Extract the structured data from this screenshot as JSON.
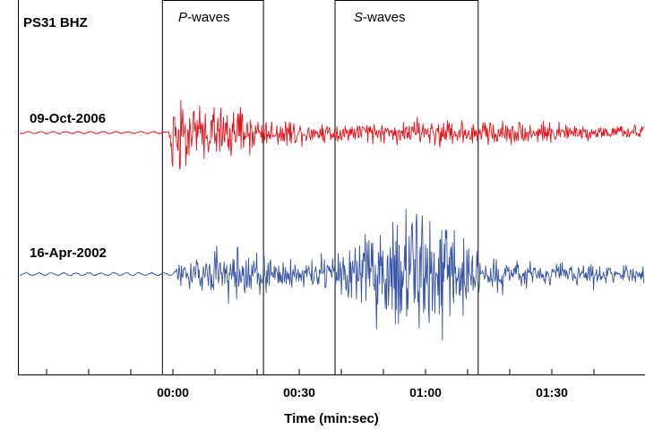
{
  "chart_data": {
    "type": "line",
    "title": "",
    "station_label": "PS31 BHZ",
    "xlabel": "Time (min:sec)",
    "ylabel": "",
    "x_unit": "seconds relative to 00:00",
    "xlim": [
      -35,
      107
    ],
    "x_ticks": [
      {
        "value": 0,
        "label": "00:00"
      },
      {
        "value": 30,
        "label": "00:30"
      },
      {
        "value": 60,
        "label": "01:00"
      },
      {
        "value": 90,
        "label": "01:30"
      }
    ],
    "minor_tick_step_seconds": 10,
    "windows": [
      {
        "label_italic": "P",
        "label_rest": "-waves",
        "start": -2.5,
        "end": 21.5
      },
      {
        "label_italic": "S",
        "label_rest": "-waves",
        "start": 38.5,
        "end": 72.5
      }
    ],
    "series": [
      {
        "name": "09-Oct-2006",
        "color": "#e8141b",
        "onset": 0,
        "envelope": [
          [
            -35,
            1.5
          ],
          [
            -1,
            1.5
          ],
          [
            0,
            44
          ],
          [
            1,
            42
          ],
          [
            3,
            34
          ],
          [
            6,
            28
          ],
          [
            10,
            26
          ],
          [
            14,
            24
          ],
          [
            18,
            20
          ],
          [
            22,
            14
          ],
          [
            30,
            11
          ],
          [
            40,
            10
          ],
          [
            50,
            10
          ],
          [
            55,
            11
          ],
          [
            60,
            13
          ],
          [
            65,
            14
          ],
          [
            70,
            12
          ],
          [
            75,
            13
          ],
          [
            80,
            11
          ],
          [
            90,
            9
          ],
          [
            100,
            7
          ],
          [
            107,
            6
          ]
        ]
      },
      {
        "name": "16-Apr-2002",
        "color": "#3755a5",
        "onset": 1,
        "envelope": [
          [
            -35,
            2
          ],
          [
            0,
            2
          ],
          [
            1,
            8
          ],
          [
            5,
            16
          ],
          [
            10,
            24
          ],
          [
            15,
            30
          ],
          [
            20,
            22
          ],
          [
            25,
            16
          ],
          [
            30,
            15
          ],
          [
            38,
            18
          ],
          [
            42,
            34
          ],
          [
            48,
            44
          ],
          [
            52,
            56
          ],
          [
            56,
            58
          ],
          [
            60,
            56
          ],
          [
            66,
            46
          ],
          [
            70,
            36
          ],
          [
            73,
            24
          ],
          [
            78,
            14
          ],
          [
            85,
            11
          ],
          [
            95,
            10
          ],
          [
            107,
            8
          ]
        ]
      }
    ],
    "grid": false,
    "legend": "none"
  }
}
